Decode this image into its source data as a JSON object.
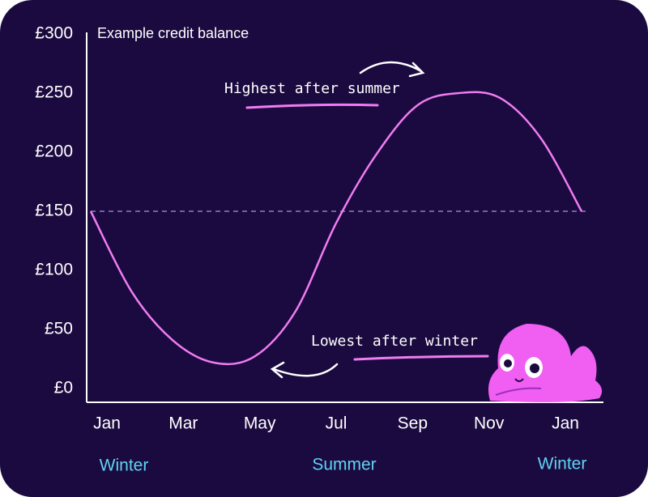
{
  "chart_data": {
    "type": "line",
    "title": "Example credit balance",
    "categories": [
      "Jan",
      null,
      "Mar",
      null,
      "May",
      null,
      "Jul",
      null,
      "Sep",
      null,
      "Nov",
      null,
      "Jan"
    ],
    "series": [
      {
        "color": "#f07cf2",
        "values": [
          150,
          82,
          41,
          22,
          27,
          65,
          140,
          199,
          240,
          250,
          246,
          212,
          150
        ]
      }
    ],
    "ylim": [
      0,
      300
    ],
    "yticks": [
      {
        "value": 0,
        "label": "£0"
      },
      {
        "value": 50,
        "label": "£50"
      },
      {
        "value": 100,
        "label": "£100"
      },
      {
        "value": 150,
        "label": "£150"
      },
      {
        "value": 200,
        "label": "£200"
      },
      {
        "value": 250,
        "label": "£250"
      },
      {
        "value": 300,
        "label": "£300"
      }
    ],
    "reference_line": 150,
    "annotations": [
      "Highest after summer",
      "Lowest after winter"
    ],
    "seasons": [
      "Winter",
      "Summer",
      "Winter"
    ]
  }
}
